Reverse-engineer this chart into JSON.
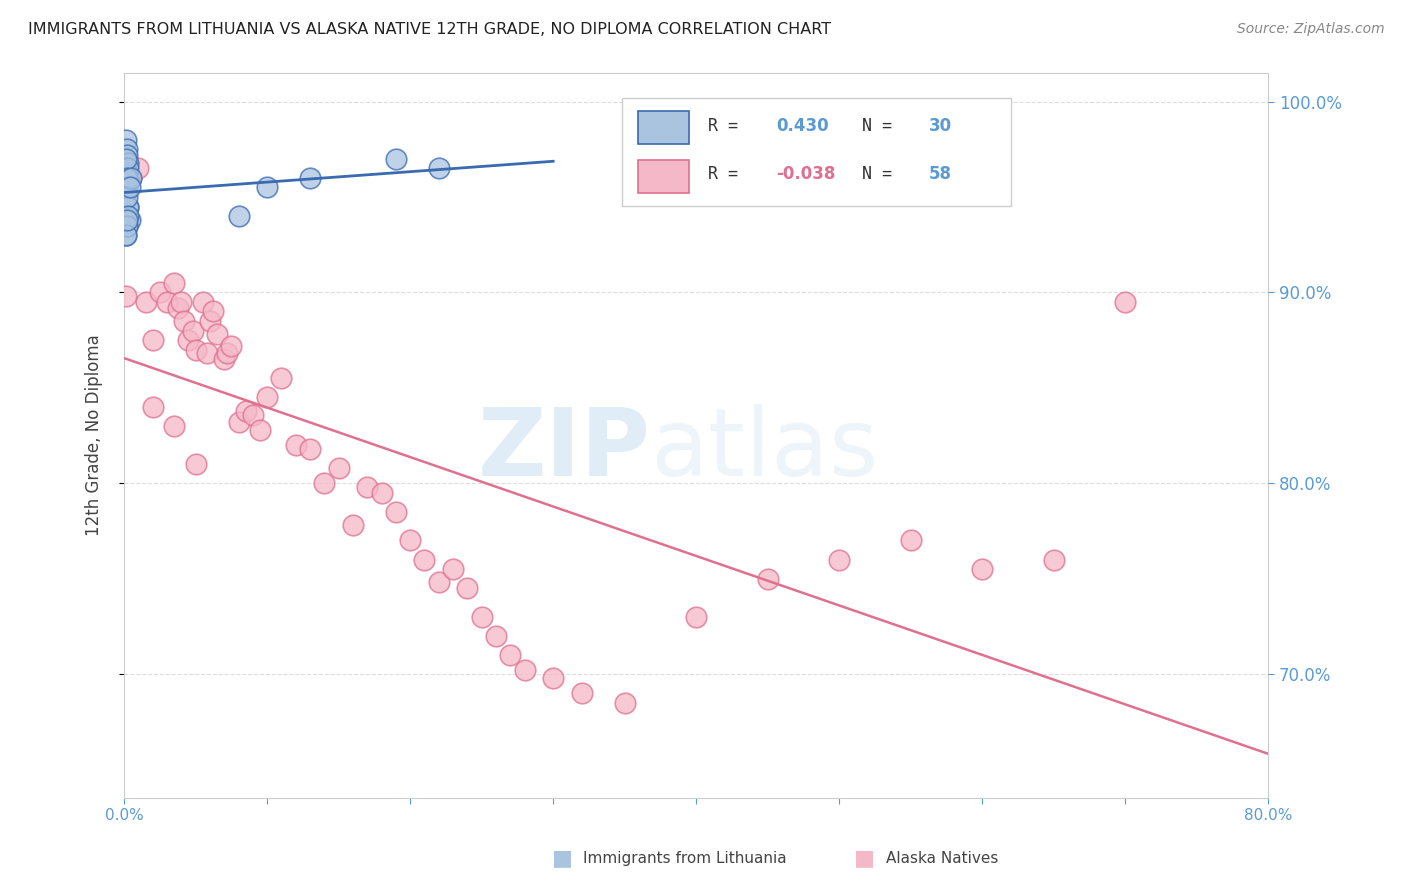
{
  "title": "IMMIGRANTS FROM LITHUANIA VS ALASKA NATIVE 12TH GRADE, NO DIPLOMA CORRELATION CHART",
  "source": "Source: ZipAtlas.com",
  "ylabel": "12th Grade, No Diploma",
  "xlim": [
    0.0,
    0.8
  ],
  "ylim": [
    0.635,
    1.015
  ],
  "xticks": [
    0.0,
    0.1,
    0.2,
    0.3,
    0.4,
    0.5,
    0.6,
    0.7,
    0.8
  ],
  "xticklabels": [
    "0.0%",
    "",
    "",
    "",
    "",
    "",
    "",
    "",
    "80.0%"
  ],
  "yticks": [
    0.7,
    0.8,
    0.9,
    1.0
  ],
  "yticklabels": [
    "70.0%",
    "80.0%",
    "90.0%",
    "100.0%"
  ],
  "grid_color": "#dddddd",
  "background_color": "#ffffff",
  "blue_color": "#aac4e0",
  "pink_color": "#f5b8c8",
  "blue_line_color": "#3a6ab0",
  "pink_line_color": "#e07090",
  "legend_R_blue": "0.430",
  "legend_N_blue": "30",
  "legend_R_pink": "-0.038",
  "legend_N_pink": "58",
  "legend_label_blue": "Immigrants from Lithuania",
  "legend_label_pink": "Alaska Natives",
  "watermark_zip": "ZIP",
  "watermark_atlas": "atlas",
  "blue_x": [
    0.001,
    0.002,
    0.002,
    0.003,
    0.001,
    0.002,
    0.003,
    0.002,
    0.001,
    0.003,
    0.001,
    0.002,
    0.003,
    0.001,
    0.004,
    0.002,
    0.003,
    0.001,
    0.002,
    0.005,
    0.004,
    0.003,
    0.002,
    0.001,
    0.002,
    0.08,
    0.1,
    0.13,
    0.19,
    0.22
  ],
  "blue_y": [
    0.98,
    0.975,
    0.972,
    0.968,
    0.965,
    0.962,
    0.958,
    0.955,
    0.952,
    0.965,
    0.97,
    0.96,
    0.945,
    0.94,
    0.938,
    0.935,
    0.945,
    0.93,
    0.95,
    0.96,
    0.955,
    0.94,
    0.935,
    0.93,
    0.938,
    0.94,
    0.955,
    0.96,
    0.97,
    0.965
  ],
  "pink_x": [
    0.001,
    0.005,
    0.01,
    0.015,
    0.02,
    0.025,
    0.03,
    0.035,
    0.038,
    0.04,
    0.042,
    0.045,
    0.048,
    0.05,
    0.055,
    0.058,
    0.06,
    0.062,
    0.065,
    0.07,
    0.072,
    0.075,
    0.08,
    0.085,
    0.09,
    0.095,
    0.1,
    0.11,
    0.12,
    0.13,
    0.14,
    0.15,
    0.16,
    0.17,
    0.18,
    0.19,
    0.2,
    0.21,
    0.22,
    0.23,
    0.24,
    0.25,
    0.26,
    0.27,
    0.28,
    0.3,
    0.32,
    0.35,
    0.4,
    0.45,
    0.5,
    0.55,
    0.6,
    0.65,
    0.7,
    0.02,
    0.035,
    0.05
  ],
  "pink_y": [
    0.898,
    0.96,
    0.965,
    0.895,
    0.875,
    0.9,
    0.895,
    0.905,
    0.892,
    0.895,
    0.885,
    0.875,
    0.88,
    0.87,
    0.895,
    0.868,
    0.885,
    0.89,
    0.878,
    0.865,
    0.868,
    0.872,
    0.832,
    0.838,
    0.836,
    0.828,
    0.845,
    0.855,
    0.82,
    0.818,
    0.8,
    0.808,
    0.778,
    0.798,
    0.795,
    0.785,
    0.77,
    0.76,
    0.748,
    0.755,
    0.745,
    0.73,
    0.72,
    0.71,
    0.702,
    0.698,
    0.69,
    0.685,
    0.73,
    0.75,
    0.76,
    0.77,
    0.755,
    0.76,
    0.895,
    0.84,
    0.83,
    0.81
  ]
}
